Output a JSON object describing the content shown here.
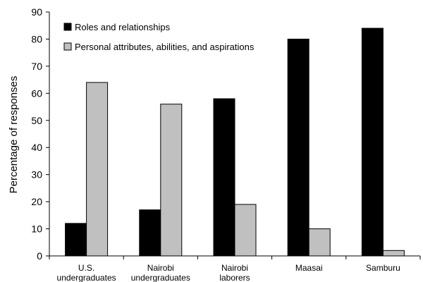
{
  "chart_data": {
    "type": "bar",
    "categories": [
      [
        "U.S.",
        "undergraduates"
      ],
      [
        "Nairobi",
        "undergraduates"
      ],
      [
        "Nairobi",
        "laborers"
      ],
      [
        "Maasai"
      ],
      [
        "Samburu"
      ]
    ],
    "series": [
      {
        "name": "Roles and relationships",
        "color": "#000000",
        "values": [
          12,
          17,
          58,
          80,
          84
        ]
      },
      {
        "name": "Personal attributes, abilities, and aspirations",
        "color": "#c0c0c0",
        "values": [
          64,
          56,
          19,
          10,
          2
        ]
      }
    ],
    "ylabel": "Percentage of responses",
    "xlabel": "",
    "ylim": [
      0,
      90
    ],
    "yticks": [
      0,
      10,
      20,
      30,
      40,
      50,
      60,
      70,
      80,
      90
    ],
    "grid": false,
    "legend_position": "top-left"
  }
}
